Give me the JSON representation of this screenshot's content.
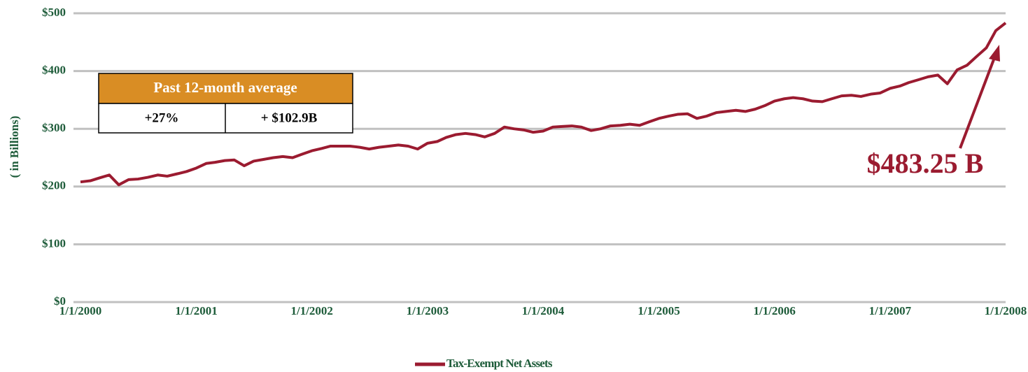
{
  "chart_data": {
    "type": "line",
    "y_label": "( in Billions)",
    "x": [
      "1/1/2000",
      "2/1/2000",
      "3/1/2000",
      "4/1/2000",
      "5/1/2000",
      "6/1/2000",
      "7/1/2000",
      "8/1/2000",
      "9/1/2000",
      "10/1/2000",
      "11/1/2000",
      "12/1/2000",
      "1/1/2001",
      "2/1/2001",
      "3/1/2001",
      "4/1/2001",
      "5/1/2001",
      "6/1/2001",
      "7/1/2001",
      "8/1/2001",
      "9/1/2001",
      "10/1/2001",
      "11/1/2001",
      "12/1/2001",
      "1/1/2002",
      "2/1/2002",
      "3/1/2002",
      "4/1/2002",
      "5/1/2002",
      "6/1/2002",
      "7/1/2002",
      "8/1/2002",
      "9/1/2002",
      "10/1/2002",
      "11/1/2002",
      "12/1/2002",
      "1/1/2003",
      "2/1/2003",
      "3/1/2003",
      "4/1/2003",
      "5/1/2003",
      "6/1/2003",
      "7/1/2003",
      "8/1/2003",
      "9/1/2003",
      "10/1/2003",
      "11/1/2003",
      "12/1/2003",
      "1/1/2004",
      "2/1/2004",
      "3/1/2004",
      "4/1/2004",
      "5/1/2004",
      "6/1/2004",
      "7/1/2004",
      "8/1/2004",
      "9/1/2004",
      "10/1/2004",
      "11/1/2004",
      "12/1/2004",
      "1/1/2005",
      "2/1/2005",
      "3/1/2005",
      "4/1/2005",
      "5/1/2005",
      "6/1/2005",
      "7/1/2005",
      "8/1/2005",
      "9/1/2005",
      "10/1/2005",
      "11/1/2005",
      "12/1/2005",
      "1/1/2006",
      "2/1/2006",
      "3/1/2006",
      "4/1/2006",
      "5/1/2006",
      "6/1/2006",
      "7/1/2006",
      "8/1/2006",
      "9/1/2006",
      "10/1/2006",
      "11/1/2006",
      "12/1/2006",
      "1/1/2007",
      "2/1/2007",
      "3/1/2007",
      "4/1/2007",
      "5/1/2007",
      "6/1/2007",
      "7/1/2007",
      "8/1/2007",
      "9/1/2007",
      "10/1/2007",
      "11/1/2007",
      "12/1/2007",
      "1/1/2008"
    ],
    "series": [
      {
        "name": "Tax-Exempt Net Assets",
        "color": "#9b1b30",
        "values": [
          208,
          210,
          215,
          220,
          203,
          212,
          213,
          216,
          220,
          218,
          222,
          226,
          232,
          240,
          242,
          245,
          246,
          236,
          244,
          247,
          250,
          252,
          250,
          256,
          262,
          266,
          270,
          270,
          270,
          268,
          265,
          268,
          270,
          272,
          270,
          265,
          275,
          278,
          285,
          290,
          292,
          290,
          286,
          292,
          303,
          300,
          298,
          294,
          296,
          303,
          304,
          305,
          303,
          297,
          300,
          305,
          306,
          308,
          306,
          312,
          318,
          322,
          325,
          326,
          318,
          322,
          328,
          330,
          332,
          330,
          334,
          340,
          348,
          352,
          354,
          352,
          348,
          347,
          352,
          357,
          358,
          356,
          360,
          362,
          370,
          374,
          380,
          385,
          390,
          393,
          378,
          402,
          410,
          425,
          440,
          470,
          483.25
        ]
      }
    ],
    "xlim": [
      "1/1/2000",
      "1/1/2008"
    ],
    "xticks": [
      "1/1/2000",
      "1/1/2001",
      "1/1/2002",
      "1/1/2003",
      "1/1/2004",
      "1/1/2005",
      "1/1/2006",
      "1/1/2007",
      "1/1/2008"
    ],
    "ylim": [
      0,
      500
    ],
    "yticks": [
      {
        "value": 0,
        "label": "$0"
      },
      {
        "value": 100,
        "label": "$100"
      },
      {
        "value": 200,
        "label": "$200"
      },
      {
        "value": 300,
        "label": "$300"
      },
      {
        "value": 400,
        "label": "$400"
      },
      {
        "value": 500,
        "label": "$500"
      }
    ],
    "grid": true,
    "annotation": "$483.25 B",
    "table": {
      "title": "Past 12-month average",
      "cells": [
        "+27%",
        "+ $102.9B"
      ]
    }
  }
}
